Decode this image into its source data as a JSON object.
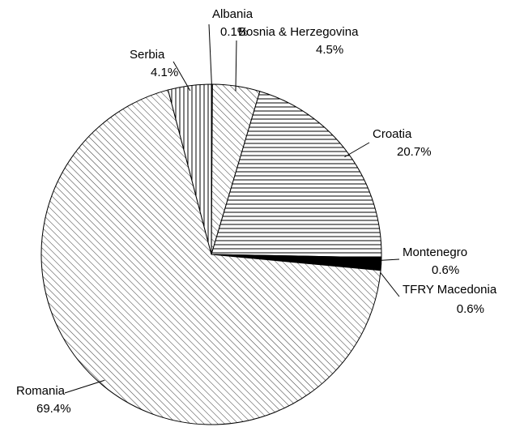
{
  "chart_data": {
    "type": "pie",
    "categories": [
      "Albania",
      "Bosnia & Herzegovina",
      "Croatia",
      "Montenegro",
      "TFRY Macedonia",
      "Romania",
      "Serbia"
    ],
    "values": [
      0.1,
      4.5,
      20.7,
      0.6,
      0.6,
      69.4,
      4.1
    ],
    "value_labels": [
      "0.1%",
      "4.5%",
      "20.7%",
      "0.6%",
      "0.6%",
      "69.4%",
      "4.1%"
    ],
    "patterns": [
      "vertical",
      "diagonal",
      "horizontal",
      "solid",
      "solid",
      "diagonal",
      "vertical"
    ],
    "color": "#000000"
  }
}
